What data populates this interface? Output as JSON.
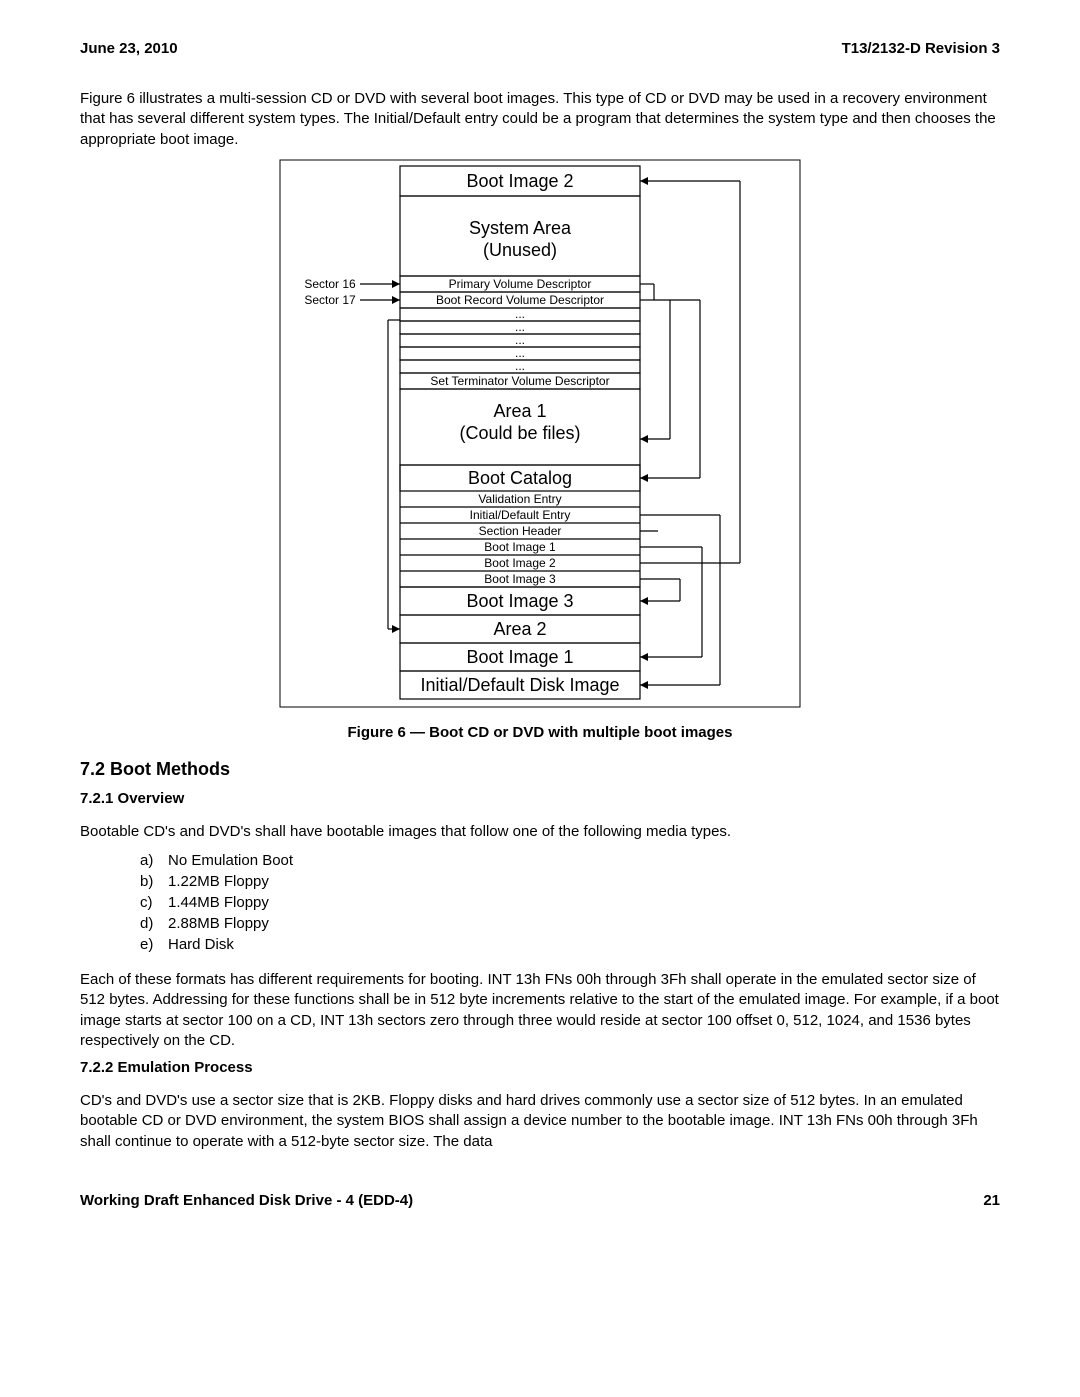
{
  "header": {
    "date": "June 23, 2010",
    "docid": "T13/2132-D Revision 3"
  },
  "para_intro": "Figure 6 illustrates a multi-session CD or DVD with several boot images.  This type of CD or DVD may be used in a recovery environment that has several different system types.  The Initial/Default entry could be a program that determines the system type and then chooses the appropriate boot image.",
  "figure": {
    "caption": "Figure 6 — Boot CD or DVD with multiple boot images",
    "sector16_label": "Sector 16",
    "sector17_label": "Sector 17",
    "boxes": {
      "boot_image_2": "Boot Image 2",
      "system_area_l1": "System Area",
      "system_area_l2": "(Unused)",
      "pvd": "Primary Volume Descriptor",
      "brvd": "Boot Record Volume Descriptor",
      "dots": "...",
      "stvd": "Set Terminator Volume Descriptor",
      "area1_l1": "Area 1",
      "area1_l2": "(Could be files)",
      "boot_catalog": "Boot Catalog",
      "catalog_lines": [
        "Validation Entry",
        "Initial/Default Entry",
        "Section Header",
        "Boot Image 1",
        "Boot Image 2",
        "Boot Image 3"
      ],
      "boot_image_3": "Boot Image 3",
      "area2": "Area 2",
      "boot_image_1": "Boot Image 1",
      "initial_default": "Initial/Default Disk Image"
    },
    "style": {
      "stroke": "#000000",
      "stroke_width": 1.2,
      "outer_border_width": 1,
      "bg": "#ffffff",
      "font_large": 18,
      "font_med": 13,
      "font_small": 12
    }
  },
  "section_7_2": {
    "title": "7.2 Boot Methods",
    "s_7_2_1": {
      "title": "7.2.1 Overview",
      "intro": "Bootable CD's and DVD's shall have bootable images that follow one of the following media types.",
      "items": [
        {
          "l": "a)",
          "t": "No Emulation Boot"
        },
        {
          "l": "b)",
          "t": "1.22MB Floppy"
        },
        {
          "l": "c)",
          "t": "1.44MB Floppy"
        },
        {
          "l": "d)",
          "t": "2.88MB Floppy"
        },
        {
          "l": "e)",
          "t": "Hard Disk"
        }
      ],
      "para2": "Each of these formats has different requirements for booting.  INT 13h FNs 00h through 3Fh shall operate in the emulated sector size of 512 bytes.  Addressing for these functions shall be in 512 byte increments relative to the start of the emulated image.  For example, if a boot image starts at sector 100 on a CD, INT 13h sectors zero through three would reside at sector 100 offset 0, 512, 1024, and 1536 bytes respectively on the CD."
    },
    "s_7_2_2": {
      "title": "7.2.2 Emulation Process",
      "para": "CD's and DVD's use a sector size that is 2KB.  Floppy disks and hard drives commonly use a sector size of 512 bytes.  In an emulated bootable CD or DVD environment, the system BIOS shall assign a device number to the bootable image.  INT 13h FNs 00h through 3Fh shall continue to operate with a 512-byte sector size.  The data"
    }
  },
  "footer": {
    "left": "Working Draft Enhanced Disk Drive - 4  (EDD-4)",
    "page": "21"
  }
}
